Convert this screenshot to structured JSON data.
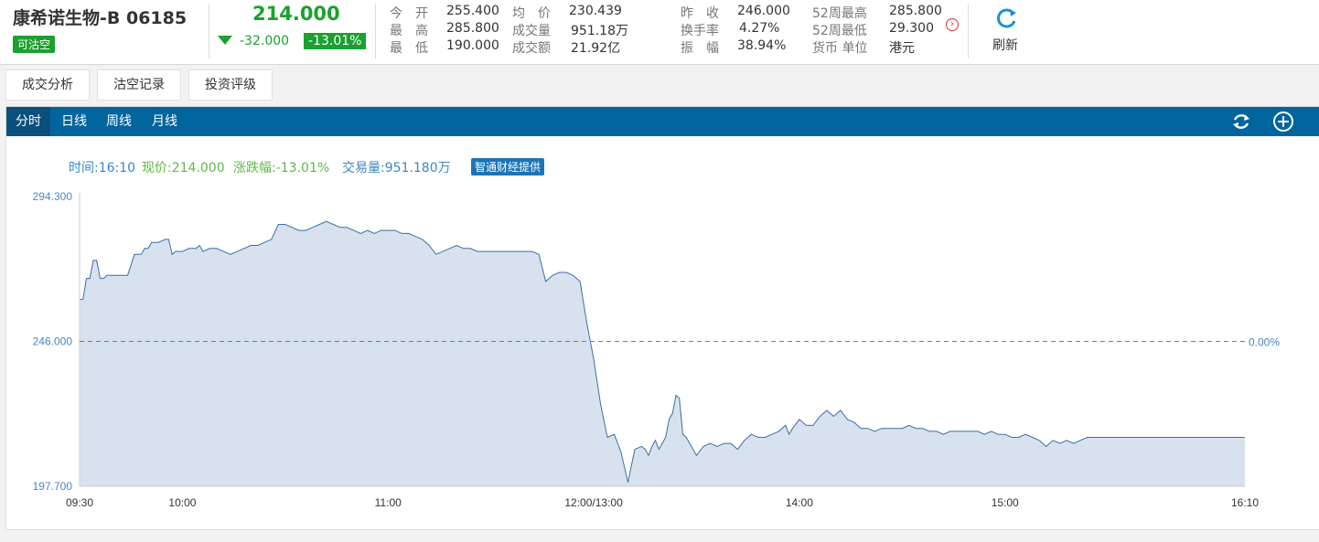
{
  "stock": {
    "name": "康希诺生物-B 06185",
    "short_badge": "可沽空",
    "price": "214.000",
    "change": "-32.000",
    "change_pct": "-13.01%"
  },
  "stats": {
    "open_label": "今　开",
    "open": "255.400",
    "high_label": "最　高",
    "high": "285.800",
    "low_label": "最　低",
    "low": "190.000",
    "avg_label": "均　价",
    "avg": "230.439",
    "volume_label": "成交量",
    "volume": "951.18万",
    "turnover_label": "成交额",
    "turnover": "21.92亿",
    "prev_close_label": "昨　收",
    "prev_close": "246.000",
    "turnover_rate_label": "换手率",
    "turnover_rate": "4.27%",
    "amplitude_label": "振　幅",
    "amplitude": "38.94%",
    "w52_high_label": "52周最高",
    "w52_high": "285.800",
    "w52_low_label": "52周最低",
    "w52_low": "29.300",
    "currency_label": "货币 单位",
    "currency": "港元"
  },
  "toolbar": {
    "refresh_label": "刷新"
  },
  "tabs": [
    "成交分析",
    "沽空记录",
    "投资评级"
  ],
  "periods": [
    "分时",
    "日线",
    "周线",
    "月线"
  ],
  "info": {
    "time": "时间:16:10",
    "price": "现价:214.000",
    "change": "涨跌幅:-13.01%",
    "volume": "交易量:951.180万",
    "provider": "智通财经提供"
  },
  "colors": {
    "green": "#1aa12e",
    "bar": "#00659d",
    "line": "#3a6ea5",
    "fill": "#d8e2ee"
  },
  "chart_data": {
    "type": "area",
    "ylim": [
      197.7,
      294.3
    ],
    "y_ticks": [
      "294.300",
      "246.000",
      "197.700"
    ],
    "baseline": 246.0,
    "baseline_label": "0.00%",
    "x_ticks": [
      {
        "t": 0,
        "label": "09:30"
      },
      {
        "t": 30,
        "label": "10:00"
      },
      {
        "t": 90,
        "label": "11:00"
      },
      {
        "t": 150,
        "label": "12:00/13:00"
      },
      {
        "t": 210,
        "label": "14:00"
      },
      {
        "t": 270,
        "label": "15:00"
      },
      {
        "t": 340,
        "label": "16:10"
      }
    ],
    "t_max": 340,
    "series": [
      {
        "t": [
          0,
          1,
          2,
          3,
          4,
          5,
          6,
          7,
          8,
          9,
          10,
          12,
          14,
          16,
          18,
          19,
          20,
          21,
          23,
          25,
          26,
          27,
          28,
          30,
          32,
          34,
          35,
          36,
          38,
          40,
          42,
          44,
          46,
          48,
          50,
          52,
          54,
          56,
          58,
          60,
          62,
          64,
          66,
          68,
          70,
          72,
          74,
          76,
          78,
          80,
          82,
          84,
          86,
          88,
          90,
          92,
          94,
          96,
          98,
          100,
          102,
          104,
          106,
          108,
          110,
          112,
          114,
          116,
          118,
          120,
          122,
          124,
          126,
          128,
          130,
          132,
          134,
          136,
          138,
          140,
          142,
          144,
          146,
          148,
          150,
          152,
          154,
          156,
          158,
          160,
          162,
          164,
          165,
          166,
          167,
          168,
          169,
          170,
          171,
          172,
          173,
          174,
          175,
          176,
          177,
          178,
          180,
          182,
          184,
          186,
          188,
          190,
          192,
          194,
          196,
          198,
          200,
          202,
          204,
          206,
          207,
          208,
          210,
          212,
          214,
          216,
          218,
          220,
          222,
          224,
          226,
          228,
          230,
          232,
          234,
          236,
          238,
          240,
          242,
          244,
          246,
          248,
          250,
          252,
          254,
          256,
          258,
          260,
          262,
          264,
          266,
          268,
          270,
          272,
          274,
          276,
          278,
          280,
          282,
          284,
          286,
          288,
          290,
          292,
          294,
          296,
          298,
          300,
          302,
          304,
          306,
          308,
          310,
          312,
          314,
          316,
          318,
          320,
          322,
          324,
          326,
          328,
          330,
          332,
          334,
          336,
          338,
          340
        ],
        "values": [
          260,
          260,
          267,
          267,
          273,
          273,
          267,
          267,
          268,
          268,
          268,
          268,
          268,
          275,
          275,
          277,
          277,
          279,
          279,
          280,
          280,
          275,
          276,
          276,
          277,
          277,
          278,
          276,
          277,
          277,
          276,
          275,
          276,
          277,
          278,
          278,
          279,
          280,
          285,
          285,
          284,
          283,
          283,
          284,
          285,
          286,
          285,
          284,
          284,
          283,
          282,
          283,
          282,
          283,
          283,
          283,
          282,
          282,
          281,
          280,
          278,
          275,
          276,
          277,
          278,
          277,
          277,
          276,
          276,
          276,
          276,
          276,
          276,
          276,
          276,
          276,
          275,
          266,
          268,
          269,
          269,
          268,
          266,
          252,
          240,
          225,
          214,
          215,
          209,
          199,
          210,
          211,
          210,
          208,
          211,
          213,
          210,
          212,
          214,
          220,
          222,
          228,
          227,
          215,
          214,
          212,
          208,
          211,
          212,
          211,
          212,
          212,
          210,
          213,
          215,
          214,
          214,
          215,
          216,
          218,
          215,
          217,
          220,
          218,
          218,
          221,
          223,
          221,
          223,
          220,
          219,
          217,
          217,
          216,
          217,
          217,
          217,
          217,
          218,
          217,
          217,
          216,
          216,
          215,
          216,
          216,
          216,
          216,
          216,
          215,
          216,
          215,
          215,
          214,
          214,
          215,
          214,
          213,
          211,
          213,
          212,
          213,
          212,
          213,
          214,
          214,
          214,
          214,
          214,
          214,
          214,
          214,
          214,
          214,
          214,
          214,
          214,
          214,
          214,
          214,
          214,
          214,
          214,
          214,
          214,
          214,
          214,
          214
        ]
      }
    ]
  }
}
